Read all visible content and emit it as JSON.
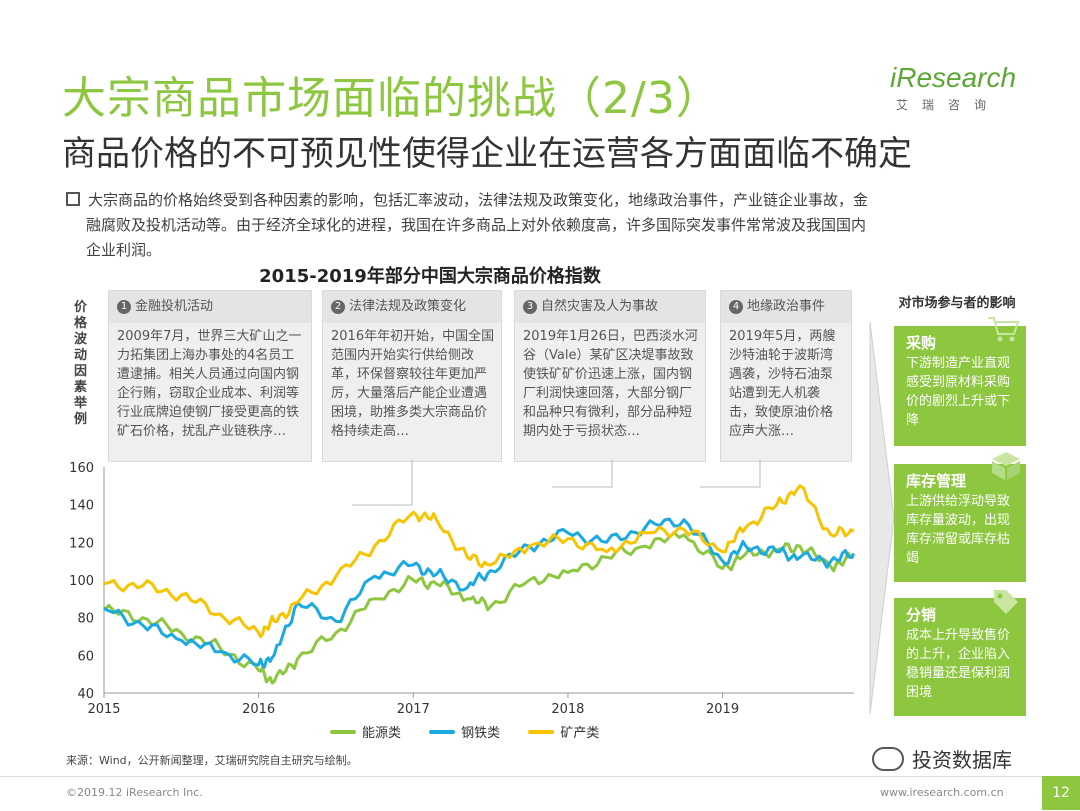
{
  "header": {
    "title": "大宗商品市场面临的挑战（2/3）",
    "subtitle": "商品价格的不可预见性使得企业在运营各方面面临不确定"
  },
  "logo": {
    "brand": "iResearch",
    "cn": "艾瑞咨询"
  },
  "bullet": {
    "line1": "大宗商品的价格始终受到各种因素的影响，包括汇率波动，法律法规及政策变化，地缘政治事件，产业链企业事故，金",
    "line2": "融腐败及投机活动等。由于经济全球化的进程，我国在许多商品上对外依赖度高，许多国际突发事件常常波及我国国内",
    "line3": "企业利润。"
  },
  "factors": [
    {
      "num": "1",
      "title": "金融投机活动",
      "text": "2009年7月，世界三大矿山之一力拓集团上海办事处的4名员工遭逮捕。相关人员通过向国内钢企行贿，窃取企业成本、利润等行业底牌迫使钢厂接受更高的铁矿石价格，扰乱产业链秩序…"
    },
    {
      "num": "2",
      "title": "法律法规及政策变化",
      "text": "2016年年初开始，中国全国范围内开始实行供给侧改革，环保督察较往年更加严厉，大量落后产能企业遭遇困境，助推多类大宗商品价格持续走高…"
    },
    {
      "num": "3",
      "title": "自然灾害及人为事故",
      "text": "2019年1月26日，巴西淡水河谷（Vale）某矿区决堤事故致使铁矿矿价迅速上涨，国内钢厂利润快速回落，大部分钢厂和品种只有微利，部分品种短期内处于亏损状态…"
    },
    {
      "num": "4",
      "title": "地缘政治事件",
      "text": "2019年5月，两艘沙特油轮于波斯湾遇袭，沙特石油泵站遭到无人机袭击，致使原油价格应声大涨…"
    }
  ],
  "impact": {
    "header": "对市场参与者的影响",
    "items": [
      {
        "title": "采购",
        "desc": "下游制造产业直观感受到原材料采购价的剧烈上升或下降"
      },
      {
        "title": "库存管理",
        "desc": "上游供给浮动导致库存量波动，出现库存滞留或库存枯竭"
      },
      {
        "title": "分销",
        "desc": "成本上升导致售价的上升，企业陷入稳销量还是保利润困境"
      }
    ]
  },
  "chart_data": {
    "type": "line",
    "title": "2015-2019年部分中国大宗商品价格指数",
    "ylabel": "价格波动因素举例",
    "xlabel": "",
    "ylim": [
      40,
      160
    ],
    "xlim": [
      2015,
      2019.85
    ],
    "yticks": [
      40,
      60,
      80,
      100,
      120,
      140,
      160
    ],
    "xticks": [
      "2015",
      "2016",
      "2017",
      "2018",
      "2019"
    ],
    "x": [
      2015.0,
      2015.25,
      2015.5,
      2015.75,
      2016.0,
      2016.1,
      2016.25,
      2016.5,
      2016.75,
      2017.0,
      2017.15,
      2017.35,
      2017.5,
      2017.75,
      2018.0,
      2018.25,
      2018.5,
      2018.75,
      2019.0,
      2019.15,
      2019.35,
      2019.5,
      2019.7,
      2019.85
    ],
    "series": [
      {
        "name": "能源类",
        "color": "#8DC63F",
        "values": [
          84,
          80,
          72,
          64,
          52,
          46,
          58,
          72,
          90,
          100,
          98,
          90,
          86,
          100,
          104,
          112,
          118,
          124,
          106,
          114,
          116,
          118,
          107,
          112
        ]
      },
      {
        "name": "钢铁类",
        "color": "#1BA9E1",
        "values": [
          85,
          76,
          68,
          62,
          55,
          60,
          88,
          78,
          102,
          108,
          103,
          96,
          105,
          118,
          125,
          120,
          128,
          132,
          110,
          118,
          115,
          112,
          110,
          114
        ]
      },
      {
        "name": "矿产类",
        "color": "#F8C300",
        "values": [
          98,
          97,
          92,
          82,
          72,
          78,
          88,
          102,
          118,
          136,
          132,
          112,
          108,
          118,
          122,
          115,
          125,
          127,
          115,
          128,
          140,
          150,
          124,
          126
        ]
      }
    ]
  },
  "source": "来源：Wind，公开新闻整理，艾瑞研究院自主研究与绘制。",
  "footer": {
    "copyright": "©2019.12 iResearch Inc.",
    "website": "www.iresearch.com.cn",
    "page": "12"
  },
  "watermark": "投资数据库"
}
